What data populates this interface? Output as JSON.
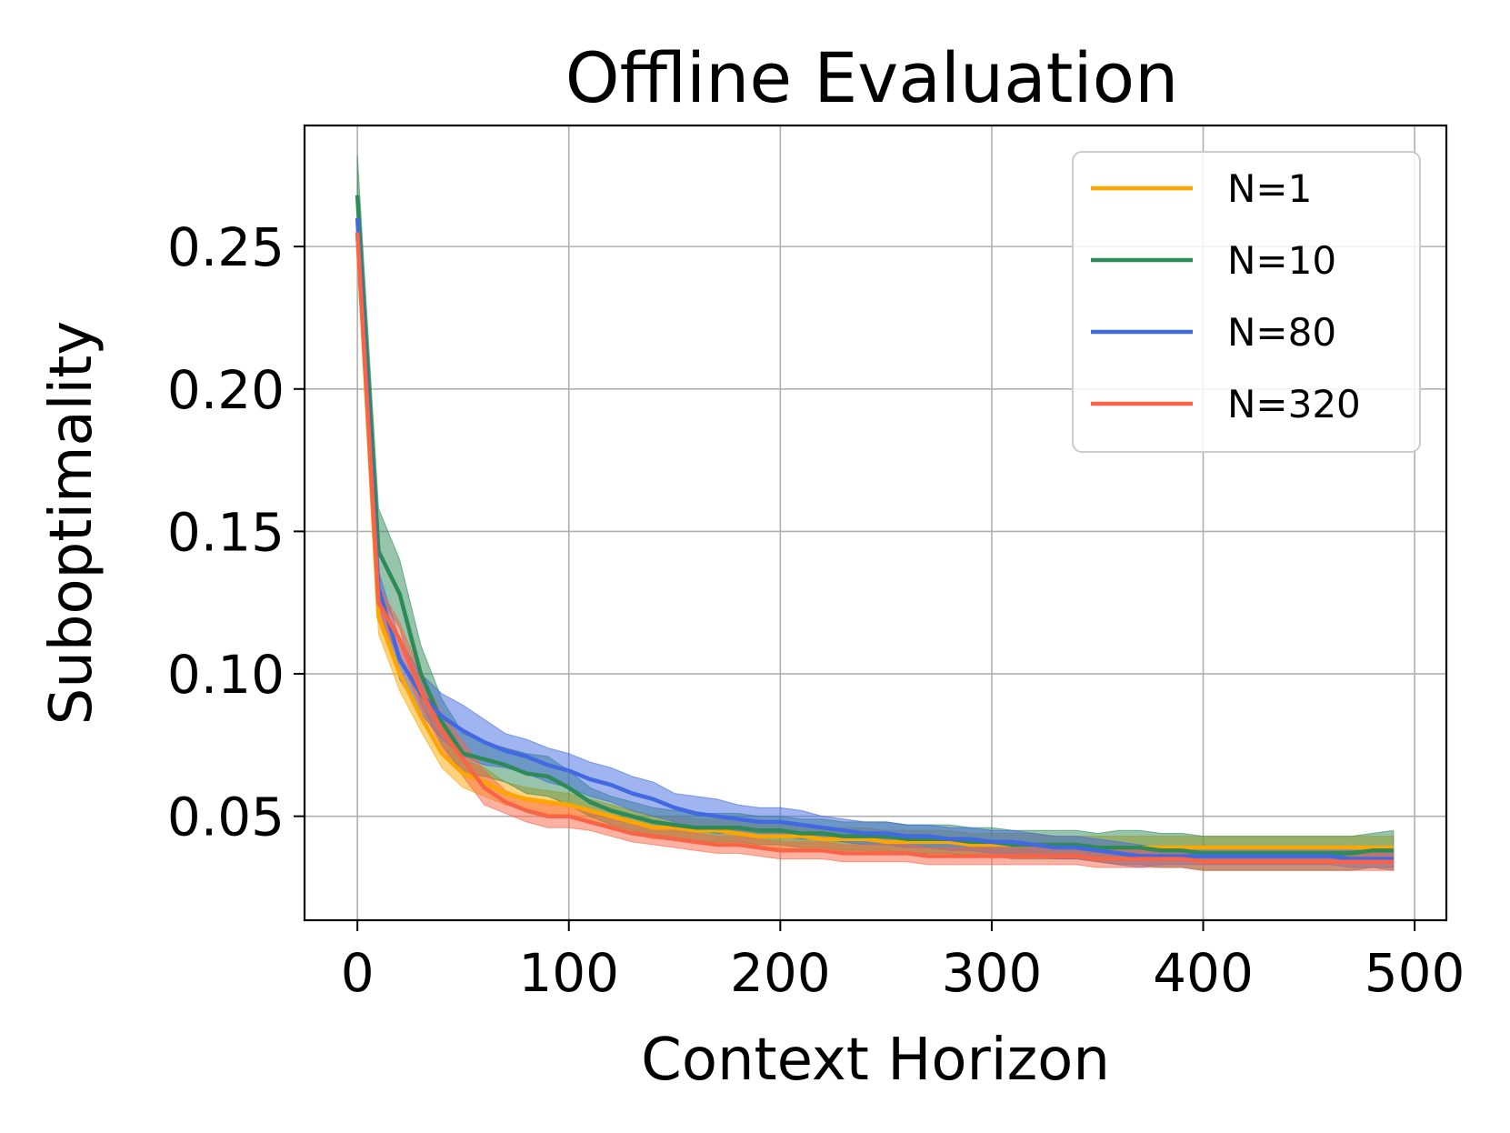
{
  "chart_data": {
    "type": "line",
    "title": "Offline Evaluation",
    "xlabel": "Context Horizon",
    "ylabel": "Suboptimality",
    "xlim": [
      -25,
      515
    ],
    "ylim": [
      0.0135,
      0.2925
    ],
    "xticks": [
      0,
      100,
      200,
      300,
      400,
      500
    ],
    "xtick_labels": [
      "0",
      "100",
      "200",
      "300",
      "400",
      "500"
    ],
    "yticks": [
      0.05,
      0.1,
      0.15,
      0.2,
      0.25
    ],
    "ytick_labels": [
      "0.05",
      "0.10",
      "0.15",
      "0.20",
      "0.25"
    ],
    "grid": true,
    "legend_position": "top-right",
    "x": [
      0,
      10,
      20,
      30,
      40,
      50,
      60,
      70,
      80,
      90,
      100,
      110,
      120,
      130,
      140,
      150,
      160,
      170,
      180,
      190,
      200,
      210,
      220,
      230,
      240,
      250,
      260,
      270,
      280,
      290,
      300,
      310,
      320,
      330,
      340,
      350,
      360,
      370,
      380,
      390,
      400,
      410,
      420,
      430,
      440,
      450,
      460,
      470,
      480,
      490
    ],
    "series": [
      {
        "name": "N=1",
        "color": "#FFA500",
        "values": [
          0.255,
          0.12,
          0.1,
          0.085,
          0.072,
          0.065,
          0.062,
          0.058,
          0.056,
          0.055,
          0.054,
          0.052,
          0.05,
          0.048,
          0.046,
          0.046,
          0.045,
          0.045,
          0.044,
          0.043,
          0.043,
          0.043,
          0.042,
          0.042,
          0.042,
          0.041,
          0.041,
          0.041,
          0.041,
          0.04,
          0.04,
          0.04,
          0.04,
          0.039,
          0.039,
          0.039,
          0.039,
          0.039,
          0.039,
          0.039,
          0.039,
          0.039,
          0.039,
          0.039,
          0.039,
          0.039,
          0.039,
          0.039,
          0.039,
          0.039
        ],
        "band": [
          0.005,
          0.006,
          0.006,
          0.005,
          0.005,
          0.005,
          0.005,
          0.004,
          0.004,
          0.004,
          0.004,
          0.004,
          0.004,
          0.004,
          0.004,
          0.004,
          0.004,
          0.004,
          0.004,
          0.004,
          0.004,
          0.004,
          0.004,
          0.004,
          0.004,
          0.004,
          0.004,
          0.004,
          0.004,
          0.004,
          0.004,
          0.004,
          0.004,
          0.004,
          0.004,
          0.004,
          0.004,
          0.004,
          0.004,
          0.004,
          0.004,
          0.004,
          0.004,
          0.004,
          0.004,
          0.004,
          0.004,
          0.004,
          0.004,
          0.004
        ]
      },
      {
        "name": "N=10",
        "color": "#2E8B57",
        "values": [
          0.268,
          0.143,
          0.128,
          0.1,
          0.083,
          0.072,
          0.07,
          0.068,
          0.065,
          0.064,
          0.06,
          0.055,
          0.052,
          0.05,
          0.048,
          0.047,
          0.046,
          0.046,
          0.046,
          0.045,
          0.045,
          0.044,
          0.044,
          0.043,
          0.043,
          0.043,
          0.042,
          0.042,
          0.042,
          0.041,
          0.041,
          0.04,
          0.04,
          0.04,
          0.04,
          0.039,
          0.039,
          0.039,
          0.038,
          0.038,
          0.037,
          0.037,
          0.037,
          0.037,
          0.037,
          0.037,
          0.037,
          0.037,
          0.038,
          0.038
        ],
        "band": [
          0.014,
          0.015,
          0.012,
          0.01,
          0.008,
          0.007,
          0.006,
          0.006,
          0.007,
          0.007,
          0.006,
          0.005,
          0.005,
          0.005,
          0.005,
          0.005,
          0.005,
          0.005,
          0.005,
          0.005,
          0.005,
          0.005,
          0.005,
          0.005,
          0.005,
          0.005,
          0.005,
          0.005,
          0.005,
          0.005,
          0.005,
          0.005,
          0.005,
          0.005,
          0.005,
          0.005,
          0.006,
          0.006,
          0.006,
          0.006,
          0.006,
          0.006,
          0.006,
          0.006,
          0.006,
          0.006,
          0.006,
          0.006,
          0.006,
          0.007
        ]
      },
      {
        "name": "N=80",
        "color": "#4169E1",
        "values": [
          0.26,
          0.13,
          0.105,
          0.093,
          0.085,
          0.08,
          0.076,
          0.073,
          0.071,
          0.068,
          0.066,
          0.063,
          0.061,
          0.058,
          0.056,
          0.053,
          0.051,
          0.05,
          0.049,
          0.048,
          0.048,
          0.047,
          0.046,
          0.045,
          0.044,
          0.044,
          0.043,
          0.043,
          0.042,
          0.042,
          0.041,
          0.041,
          0.04,
          0.039,
          0.039,
          0.038,
          0.037,
          0.036,
          0.036,
          0.036,
          0.036,
          0.036,
          0.036,
          0.036,
          0.036,
          0.036,
          0.036,
          0.035,
          0.035,
          0.035
        ],
        "band": [
          0.003,
          0.006,
          0.007,
          0.007,
          0.008,
          0.009,
          0.008,
          0.006,
          0.006,
          0.006,
          0.006,
          0.006,
          0.006,
          0.006,
          0.006,
          0.005,
          0.006,
          0.006,
          0.005,
          0.005,
          0.005,
          0.005,
          0.004,
          0.004,
          0.004,
          0.004,
          0.004,
          0.004,
          0.004,
          0.004,
          0.004,
          0.004,
          0.004,
          0.004,
          0.004,
          0.004,
          0.004,
          0.004,
          0.003,
          0.003,
          0.003,
          0.003,
          0.003,
          0.003,
          0.003,
          0.003,
          0.003,
          0.003,
          0.003,
          0.003
        ]
      },
      {
        "name": "N=320",
        "color": "#FA6446",
        "values": [
          0.255,
          0.125,
          0.112,
          0.094,
          0.08,
          0.07,
          0.06,
          0.055,
          0.052,
          0.05,
          0.05,
          0.048,
          0.046,
          0.044,
          0.043,
          0.042,
          0.041,
          0.04,
          0.04,
          0.039,
          0.038,
          0.038,
          0.038,
          0.037,
          0.037,
          0.037,
          0.037,
          0.036,
          0.036,
          0.036,
          0.036,
          0.036,
          0.036,
          0.036,
          0.036,
          0.035,
          0.035,
          0.035,
          0.035,
          0.035,
          0.034,
          0.034,
          0.034,
          0.034,
          0.034,
          0.034,
          0.034,
          0.034,
          0.034,
          0.034
        ],
        "band": [
          0.004,
          0.006,
          0.006,
          0.006,
          0.006,
          0.006,
          0.006,
          0.004,
          0.004,
          0.004,
          0.004,
          0.003,
          0.003,
          0.003,
          0.003,
          0.003,
          0.003,
          0.003,
          0.003,
          0.003,
          0.003,
          0.003,
          0.003,
          0.003,
          0.003,
          0.003,
          0.003,
          0.003,
          0.003,
          0.003,
          0.003,
          0.003,
          0.003,
          0.003,
          0.003,
          0.003,
          0.003,
          0.003,
          0.003,
          0.003,
          0.003,
          0.003,
          0.003,
          0.003,
          0.003,
          0.003,
          0.003,
          0.003,
          0.003,
          0.003
        ]
      }
    ]
  }
}
